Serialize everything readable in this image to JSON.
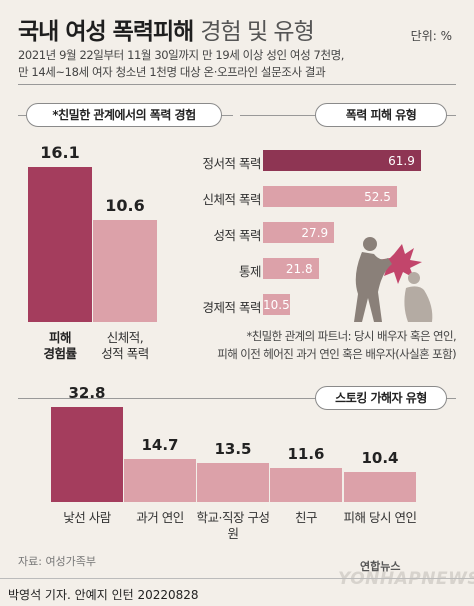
{
  "header": {
    "title_main": "국내 여성 폭력피해",
    "title_sub": "경험 및 유형",
    "unit": "단위: %",
    "desc_line1": "2021년 9월 22일부터 11월 30일까지 만 19세 이상 성인 여성 7천명,",
    "desc_line2": "만 14세~18세 여자 청소년 1천명 대상 온·오프라인 설문조사 결과"
  },
  "sections": {
    "experience_title": "*친밀한 관계에서의 폭력 경험",
    "type_title": "폭력 피해 유형",
    "stalking_title": "스토킹 가해자 유형"
  },
  "footnote": {
    "line1": "*친밀한 관계의 파트너: 당시 배우자 혹은 연인,",
    "line2": "피해 이전 헤어진 과거 연인 혹은 배우자(사실혼 포함)"
  },
  "footer": {
    "source": "자료: 여성가족부",
    "credit": "박영석 기자. 안예지 인턴  20220828",
    "logo_kr": "연합뉴스",
    "logo_en": "YONHAPNEWS"
  },
  "colors": {
    "dark": "#a43d5d",
    "light": "#dca1a9",
    "accent": "#8e3553",
    "background": "#f3efe9"
  },
  "chart_data": [
    {
      "type": "bar",
      "title": "*친밀한 관계에서의 폭력 경험",
      "categories": [
        "피해 경험률",
        "신체적, 성적 폭력"
      ],
      "values": [
        16.1,
        10.6
      ]
    },
    {
      "type": "bar",
      "orientation": "horizontal",
      "title": "폭력 피해 유형",
      "categories": [
        "정서적 폭력",
        "신체적 폭력",
        "성적 폭력",
        "통제",
        "경제적 폭력"
      ],
      "values": [
        61.9,
        52.5,
        27.9,
        21.8,
        10.5
      ]
    },
    {
      "type": "bar",
      "title": "스토킹 가해자 유형",
      "categories": [
        "낯선 사람",
        "과거 연인",
        "학교·직장 구성원",
        "친구",
        "피해 당시 연인"
      ],
      "values": [
        32.8,
        14.7,
        13.5,
        11.6,
        10.4
      ]
    }
  ]
}
